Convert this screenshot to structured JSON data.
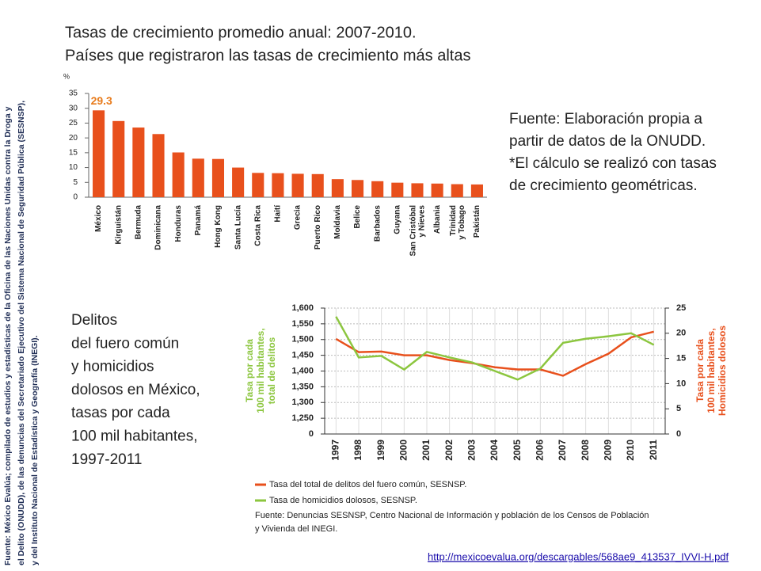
{
  "slide": {
    "side_note": [
      "Fuente: México Evalúa; compilado de estudios y estadísticas de la Oficina de las Naciones Unidas contra la Droga y",
      "el Delito (ONUDD), de las denuncias del Secretariado Ejecutivo del Sistema Nacional de Seguridad Pública (SESNSP),",
      "y del Instituto Nacional de Estadística y Geografía (INEGI)."
    ],
    "note_right": [
      "Fuente: Elaboración  propia a",
      "partir de datos de la ONUDD.",
      "*El cálculo se realizó con tasas",
      "de crecimiento geométricas."
    ],
    "text_left": [
      "Delitos",
      "del fuero común",
      "y homicidios",
      "dolosos en México,",
      "tasas por cada",
      "100 mil habitantes,",
      "1997-2011"
    ],
    "url": "http://mexicoevalua.org/descargables/568ae9_413537_IVVI-H.pdf"
  },
  "chart_data": [
    {
      "type": "bar",
      "title": "Tasas de crecimiento promedio anual: 2007-2010.",
      "subtitle": "Países que registraron las tasas de crecimiento más altas",
      "y_label": "%",
      "categories": [
        "México",
        "Kirguistán",
        "Bermuda",
        "Dominicana",
        "Honduras",
        "Panamá",
        "Hong Kong",
        "Santa Lucía",
        "Costa Rica",
        "Haití",
        "Grecia",
        "Puerto Rico",
        "Moldavia",
        "Belice",
        "Barbados",
        "Guyana",
        "San Cristóbal\ny Nieves",
        "Albania",
        "Trinidad\ny Tobago",
        "Pakistán"
      ],
      "values": [
        29.3,
        25.7,
        23.5,
        21.3,
        15.1,
        13,
        12.9,
        10,
        8.2,
        8.1,
        7.9,
        7.8,
        6.1,
        5.8,
        5.4,
        4.9,
        4.7,
        4.6,
        4.4,
        4.3
      ],
      "value_labels": [
        "29.3",
        null,
        null,
        null,
        null,
        null,
        null,
        null,
        null,
        null,
        null,
        null,
        null,
        null,
        null,
        null,
        null,
        null,
        null,
        null
      ],
      "color": "#e8501c",
      "label_color": "#e87b1c",
      "ylim": [
        0,
        35
      ],
      "yticks": [
        0,
        5,
        10,
        15,
        20,
        25,
        30,
        35
      ]
    },
    {
      "type": "line",
      "categories": [
        "1997",
        "1998",
        "1999",
        "2000",
        "2001",
        "2002",
        "2003",
        "2004",
        "2005",
        "2006",
        "2007",
        "2008",
        "2009",
        "2010",
        "2011"
      ],
      "series": [
        {
          "name": "Tasa del total de delitos del fuero común, SESNSP.",
          "color": "#e8501c",
          "values": [
            1502,
            1460,
            1462,
            1450,
            1450,
            1435,
            1425,
            1412,
            1405,
            1405,
            1385,
            1422,
            1455,
            1507,
            1525
          ]
        },
        {
          "name": "Tasa de homicidios dolosos, SESNSP.",
          "color": "#8cc63f",
          "axis": "y2",
          "values": [
            23.3,
            15.2,
            15.5,
            12.8,
            16.3,
            15.2,
            14.2,
            12.5,
            10.8,
            13,
            18.1,
            18.9,
            19.4,
            20,
            17.7
          ]
        }
      ],
      "y_label": [
        "Tasa por cada",
        "100 mil habitantes,",
        "total de delitos"
      ],
      "y_label_color": "#8cc63f",
      "y2_label": [
        "Tasa por cada",
        "100 mil habitantes,",
        "Homicidios dolosos"
      ],
      "y2_label_color": "#e8501c",
      "ylim": [
        0,
        1600
      ],
      "axis_break": true,
      "yticks": [
        0,
        {
          "value": 1250,
          "label": "1,250"
        },
        {
          "value": 1300,
          "label": "1,300"
        },
        {
          "value": 1350,
          "label": "1,350"
        },
        {
          "value": 1400,
          "label": "1,400"
        },
        {
          "value": 1450,
          "label": "1,450"
        },
        {
          "value": 1500,
          "label": "1,500"
        },
        {
          "value": 1550,
          "label": "1,550"
        },
        {
          "value": 1600,
          "label": "1,600"
        }
      ],
      "y2lim": [
        0,
        25
      ],
      "y2ticks": [
        0,
        5,
        10,
        15,
        20,
        25
      ],
      "grid": true,
      "source": [
        "Fuente: Denuncias SESNSP, Centro Nacional de Información y población de los Censos de Población",
        "y Vivienda del INEGI."
      ]
    }
  ]
}
